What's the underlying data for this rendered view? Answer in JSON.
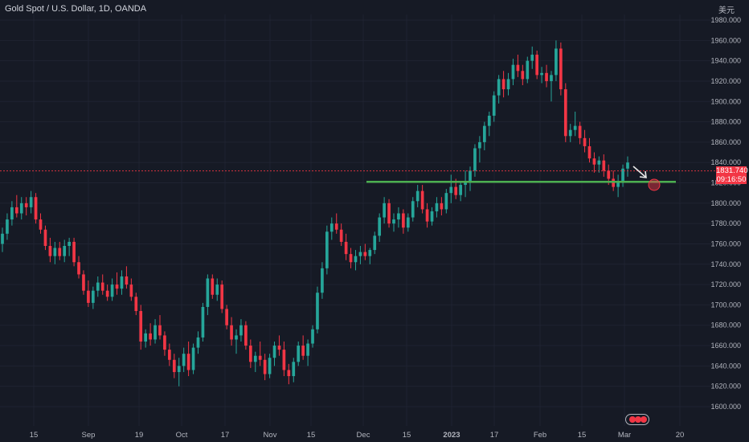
{
  "header": {
    "title": "Gold Spot / U.S. Dollar, 1D, OANDA",
    "unit": "美元"
  },
  "price_tag": {
    "price": "1831.740",
    "countdown": "09:16:50"
  },
  "colors": {
    "background": "#161a25",
    "up": "#26a69a",
    "down": "#f23645",
    "support_line": "#4caf50",
    "current_price_line": "#f23645",
    "text": "#b2b5be",
    "grid": "#1f2331"
  },
  "chart_data": {
    "type": "candlestick",
    "title": "Gold Spot / U.S. Dollar, 1D, OANDA",
    "y_unit": "美元",
    "ylim": [
      1584,
      1986
    ],
    "y_ticks": [
      "1600.000",
      "1620.000",
      "1640.000",
      "1660.000",
      "1680.000",
      "1700.000",
      "1720.000",
      "1740.000",
      "1760.000",
      "1780.000",
      "1800.000",
      "1820.000",
      "1840.000",
      "1860.000",
      "1880.000",
      "1900.000",
      "1920.000",
      "1940.000",
      "1960.000",
      "1980.000"
    ],
    "x_ticks": [
      "15",
      "Sep",
      "19",
      "Oct",
      "17",
      "Nov",
      "15",
      "Dec",
      "15",
      "2023",
      "17",
      "Feb",
      "15",
      "Mar",
      "20"
    ],
    "grid": true,
    "current_price": 1831.74,
    "support_level": 1821,
    "candles": [
      [
        1760,
        1776,
        1752,
        1770
      ],
      [
        1770,
        1790,
        1764,
        1784
      ],
      [
        1784,
        1802,
        1778,
        1796
      ],
      [
        1796,
        1808,
        1786,
        1790
      ],
      [
        1790,
        1806,
        1784,
        1800
      ],
      [
        1800,
        1806,
        1788,
        1796
      ],
      [
        1796,
        1812,
        1790,
        1806
      ],
      [
        1806,
        1810,
        1780,
        1784
      ],
      [
        1784,
        1790,
        1770,
        1774
      ],
      [
        1774,
        1778,
        1754,
        1758
      ],
      [
        1758,
        1766,
        1742,
        1748
      ],
      [
        1748,
        1762,
        1740,
        1756
      ],
      [
        1756,
        1762,
        1744,
        1748
      ],
      [
        1748,
        1764,
        1742,
        1758
      ],
      [
        1758,
        1766,
        1748,
        1762
      ],
      [
        1762,
        1766,
        1738,
        1742
      ],
      [
        1742,
        1748,
        1726,
        1730
      ],
      [
        1730,
        1734,
        1710,
        1714
      ],
      [
        1714,
        1724,
        1698,
        1702
      ],
      [
        1702,
        1718,
        1696,
        1714
      ],
      [
        1714,
        1728,
        1708,
        1722
      ],
      [
        1722,
        1730,
        1710,
        1714
      ],
      [
        1714,
        1720,
        1704,
        1708
      ],
      [
        1708,
        1726,
        1704,
        1720
      ],
      [
        1720,
        1732,
        1710,
        1716
      ],
      [
        1716,
        1734,
        1710,
        1728
      ],
      [
        1728,
        1738,
        1716,
        1720
      ],
      [
        1720,
        1726,
        1704,
        1708
      ],
      [
        1708,
        1712,
        1690,
        1694
      ],
      [
        1694,
        1700,
        1656,
        1664
      ],
      [
        1664,
        1676,
        1658,
        1672
      ],
      [
        1672,
        1682,
        1660,
        1666
      ],
      [
        1666,
        1686,
        1662,
        1680
      ],
      [
        1680,
        1690,
        1666,
        1670
      ],
      [
        1670,
        1674,
        1650,
        1656
      ],
      [
        1656,
        1662,
        1640,
        1646
      ],
      [
        1646,
        1652,
        1628,
        1634
      ],
      [
        1634,
        1648,
        1620,
        1640
      ],
      [
        1640,
        1658,
        1634,
        1652
      ],
      [
        1652,
        1664,
        1630,
        1636
      ],
      [
        1636,
        1662,
        1632,
        1658
      ],
      [
        1658,
        1674,
        1652,
        1668
      ],
      [
        1668,
        1702,
        1664,
        1698
      ],
      [
        1698,
        1730,
        1690,
        1726
      ],
      [
        1726,
        1730,
        1706,
        1710
      ],
      [
        1710,
        1726,
        1704,
        1720
      ],
      [
        1720,
        1724,
        1692,
        1696
      ],
      [
        1696,
        1700,
        1676,
        1680
      ],
      [
        1680,
        1688,
        1660,
        1666
      ],
      [
        1666,
        1676,
        1652,
        1670
      ],
      [
        1670,
        1686,
        1664,
        1680
      ],
      [
        1680,
        1684,
        1656,
        1660
      ],
      [
        1660,
        1666,
        1638,
        1644
      ],
      [
        1644,
        1654,
        1634,
        1650
      ],
      [
        1650,
        1664,
        1640,
        1646
      ],
      [
        1646,
        1652,
        1626,
        1632
      ],
      [
        1632,
        1652,
        1628,
        1648
      ],
      [
        1648,
        1664,
        1640,
        1660
      ],
      [
        1660,
        1670,
        1650,
        1656
      ],
      [
        1656,
        1664,
        1630,
        1636
      ],
      [
        1636,
        1642,
        1622,
        1630
      ],
      [
        1630,
        1648,
        1624,
        1644
      ],
      [
        1644,
        1664,
        1640,
        1660
      ],
      [
        1660,
        1670,
        1646,
        1650
      ],
      [
        1650,
        1666,
        1640,
        1662
      ],
      [
        1662,
        1680,
        1658,
        1676
      ],
      [
        1676,
        1718,
        1672,
        1712
      ],
      [
        1712,
        1742,
        1706,
        1736
      ],
      [
        1736,
        1778,
        1730,
        1772
      ],
      [
        1772,
        1786,
        1764,
        1780
      ],
      [
        1780,
        1790,
        1770,
        1774
      ],
      [
        1774,
        1780,
        1758,
        1762
      ],
      [
        1762,
        1770,
        1744,
        1750
      ],
      [
        1750,
        1756,
        1736,
        1742
      ],
      [
        1742,
        1754,
        1734,
        1748
      ],
      [
        1748,
        1758,
        1740,
        1752
      ],
      [
        1752,
        1760,
        1744,
        1748
      ],
      [
        1748,
        1756,
        1740,
        1754
      ],
      [
        1754,
        1772,
        1750,
        1768
      ],
      [
        1768,
        1790,
        1762,
        1786
      ],
      [
        1786,
        1806,
        1780,
        1800
      ],
      [
        1800,
        1804,
        1776,
        1780
      ],
      [
        1780,
        1790,
        1772,
        1784
      ],
      [
        1784,
        1796,
        1776,
        1790
      ],
      [
        1790,
        1794,
        1770,
        1776
      ],
      [
        1776,
        1790,
        1772,
        1786
      ],
      [
        1786,
        1806,
        1782,
        1802
      ],
      [
        1802,
        1818,
        1796,
        1812
      ],
      [
        1812,
        1818,
        1790,
        1794
      ],
      [
        1794,
        1800,
        1776,
        1782
      ],
      [
        1782,
        1796,
        1778,
        1792
      ],
      [
        1792,
        1806,
        1786,
        1800
      ],
      [
        1800,
        1806,
        1788,
        1794
      ],
      [
        1794,
        1814,
        1790,
        1810
      ],
      [
        1810,
        1828,
        1800,
        1816
      ],
      [
        1816,
        1824,
        1804,
        1808
      ],
      [
        1808,
        1822,
        1802,
        1818
      ],
      [
        1818,
        1832,
        1806,
        1822
      ],
      [
        1822,
        1836,
        1812,
        1832
      ],
      [
        1832,
        1858,
        1826,
        1854
      ],
      [
        1854,
        1866,
        1840,
        1860
      ],
      [
        1860,
        1880,
        1852,
        1876
      ],
      [
        1876,
        1890,
        1866,
        1886
      ],
      [
        1886,
        1910,
        1880,
        1906
      ],
      [
        1906,
        1926,
        1898,
        1922
      ],
      [
        1922,
        1930,
        1904,
        1912
      ],
      [
        1912,
        1928,
        1906,
        1922
      ],
      [
        1922,
        1942,
        1916,
        1936
      ],
      [
        1936,
        1946,
        1924,
        1930
      ],
      [
        1930,
        1936,
        1916,
        1922
      ],
      [
        1922,
        1944,
        1918,
        1940
      ],
      [
        1940,
        1954,
        1932,
        1946
      ],
      [
        1946,
        1950,
        1922,
        1926
      ],
      [
        1926,
        1934,
        1918,
        1928
      ],
      [
        1928,
        1936,
        1914,
        1920
      ],
      [
        1920,
        1930,
        1900,
        1926
      ],
      [
        1926,
        1960,
        1920,
        1952
      ],
      [
        1952,
        1958,
        1906,
        1912
      ],
      [
        1912,
        1918,
        1860,
        1866
      ],
      [
        1866,
        1878,
        1860,
        1872
      ],
      [
        1872,
        1890,
        1866,
        1876
      ],
      [
        1876,
        1880,
        1858,
        1864
      ],
      [
        1864,
        1872,
        1850,
        1856
      ],
      [
        1856,
        1864,
        1840,
        1844
      ],
      [
        1844,
        1850,
        1830,
        1838
      ],
      [
        1838,
        1846,
        1830,
        1842
      ],
      [
        1842,
        1848,
        1826,
        1832
      ],
      [
        1832,
        1838,
        1818,
        1824
      ],
      [
        1824,
        1832,
        1812,
        1816
      ],
      [
        1816,
        1828,
        1806,
        1822
      ],
      [
        1822,
        1838,
        1816,
        1834
      ],
      [
        1834,
        1846,
        1826,
        1840
      ]
    ],
    "annotations": [
      "horizontal support line at ~1821",
      "down arrow pointing to target circle near 1821"
    ]
  }
}
